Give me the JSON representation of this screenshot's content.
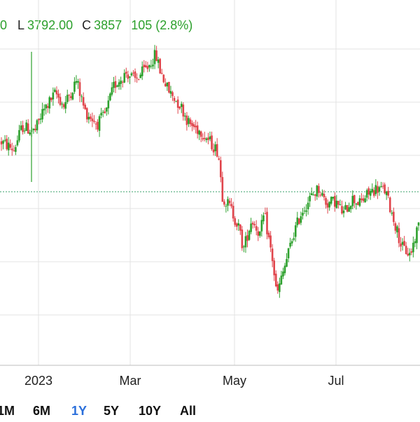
{
  "header": {
    "open_value_fragment": "0",
    "low_key": "L",
    "low_value": "3792.00",
    "close_key": "C",
    "close_value": "3857",
    "change_value": "105",
    "change_pct": "(2.8%)"
  },
  "range_buttons": [
    "1M",
    "6M",
    "1Y",
    "5Y",
    "10Y",
    "All"
  ],
  "active_range": "1Y",
  "colors": {
    "up": "#2ca02c",
    "down": "#e0444b",
    "grid": "#e3e3e3",
    "reference_line": "#3aa06a",
    "active_range": "#2a6fdb"
  },
  "chart_data": {
    "type": "candlestick",
    "x_tick_labels": [
      "2023",
      "Mar",
      "May",
      "Jul"
    ],
    "grid": true,
    "reference_line": "dotted horizontal previous close",
    "series": [
      {
        "name": "",
        "path": [
          {
            "x": 0.0,
            "y": 0.66
          },
          {
            "x": 0.03,
            "y": 0.63
          },
          {
            "x": 0.05,
            "y": 0.72
          },
          {
            "x": 0.08,
            "y": 0.7
          },
          {
            "x": 0.1,
            "y": 0.78
          },
          {
            "x": 0.13,
            "y": 0.85
          },
          {
            "x": 0.15,
            "y": 0.8
          },
          {
            "x": 0.18,
            "y": 0.9
          },
          {
            "x": 0.2,
            "y": 0.78
          },
          {
            "x": 0.23,
            "y": 0.73
          },
          {
            "x": 0.25,
            "y": 0.77
          },
          {
            "x": 0.27,
            "y": 0.88
          },
          {
            "x": 0.3,
            "y": 0.93
          },
          {
            "x": 0.32,
            "y": 0.9
          },
          {
            "x": 0.35,
            "y": 0.95
          },
          {
            "x": 0.37,
            "y": 1.0
          },
          {
            "x": 0.38,
            "y": 0.94
          },
          {
            "x": 0.4,
            "y": 0.86
          },
          {
            "x": 0.43,
            "y": 0.8
          },
          {
            "x": 0.45,
            "y": 0.73
          },
          {
            "x": 0.48,
            "y": 0.7
          },
          {
            "x": 0.5,
            "y": 0.66
          },
          {
            "x": 0.52,
            "y": 0.62
          },
          {
            "x": 0.53,
            "y": 0.45
          },
          {
            "x": 0.55,
            "y": 0.4
          },
          {
            "x": 0.57,
            "y": 0.32
          },
          {
            "x": 0.58,
            "y": 0.24
          },
          {
            "x": 0.6,
            "y": 0.36
          },
          {
            "x": 0.62,
            "y": 0.3
          },
          {
            "x": 0.63,
            "y": 0.38
          },
          {
            "x": 0.65,
            "y": 0.2
          },
          {
            "x": 0.66,
            "y": 0.06
          },
          {
            "x": 0.68,
            "y": 0.18
          },
          {
            "x": 0.7,
            "y": 0.3
          },
          {
            "x": 0.72,
            "y": 0.39
          },
          {
            "x": 0.74,
            "y": 0.44
          },
          {
            "x": 0.76,
            "y": 0.48
          },
          {
            "x": 0.78,
            "y": 0.42
          },
          {
            "x": 0.8,
            "y": 0.43
          },
          {
            "x": 0.82,
            "y": 0.38
          },
          {
            "x": 0.84,
            "y": 0.44
          },
          {
            "x": 0.86,
            "y": 0.42
          },
          {
            "x": 0.88,
            "y": 0.46
          },
          {
            "x": 0.9,
            "y": 0.48
          },
          {
            "x": 0.92,
            "y": 0.47
          },
          {
            "x": 0.94,
            "y": 0.36
          },
          {
            "x": 0.96,
            "y": 0.25
          },
          {
            "x": 0.98,
            "y": 0.22
          },
          {
            "x": 1.0,
            "y": 0.34
          }
        ],
        "spike_index": 6
      }
    ]
  }
}
